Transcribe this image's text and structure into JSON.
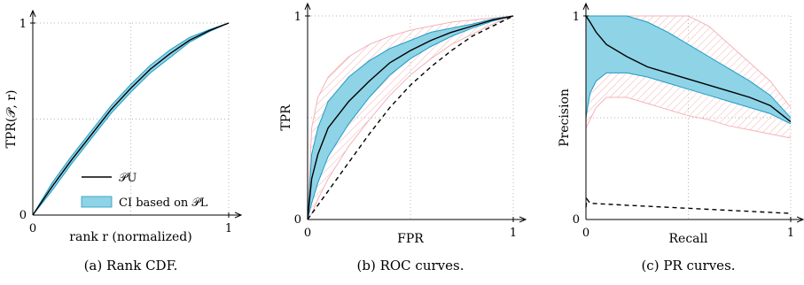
{
  "colors": {
    "ci_fill": "#8fd3e6",
    "ci_edge": "#1f9cc4",
    "median": "#000000",
    "bound": "#f3b3b8",
    "grid": "#9a9a9a"
  },
  "chart_data": [
    {
      "type": "area",
      "caption": "(a) Rank CDF.",
      "xlabel": "rank  r (normalized)",
      "ylabel": "TPR(𝒫, r)",
      "xlim": [
        0,
        1
      ],
      "ylim": [
        0,
        1
      ],
      "x_ticks": [
        "0",
        "1"
      ],
      "y_ticks": [
        "0",
        "1"
      ],
      "grid": true,
      "legend": {
        "placement": "bottom-right",
        "entries": [
          {
            "label": "𝒫U",
            "kind": "line"
          },
          {
            "label": "CI based on 𝒫L",
            "kind": "band"
          }
        ]
      },
      "series": [
        {
          "name": "𝒫U",
          "role": "median",
          "x": [
            0,
            0.1,
            0.2,
            0.3,
            0.4,
            0.5,
            0.6,
            0.7,
            0.8,
            0.9,
            1.0
          ],
          "y": [
            0,
            0.15,
            0.29,
            0.42,
            0.55,
            0.66,
            0.76,
            0.84,
            0.91,
            0.96,
            1.0
          ]
        },
        {
          "name": "CI based on 𝒫L",
          "role": "ci",
          "x": [
            0,
            0.1,
            0.2,
            0.3,
            0.4,
            0.5,
            0.6,
            0.7,
            0.8,
            0.9,
            1.0
          ],
          "lower": [
            0,
            0.13,
            0.27,
            0.4,
            0.53,
            0.64,
            0.74,
            0.82,
            0.9,
            0.955,
            1.0
          ],
          "upper": [
            0,
            0.17,
            0.31,
            0.44,
            0.57,
            0.68,
            0.78,
            0.86,
            0.925,
            0.965,
            1.0
          ]
        }
      ]
    },
    {
      "type": "line",
      "caption": "(b) ROC curves.",
      "xlabel": "FPR",
      "ylabel": "TPR",
      "xlim": [
        0,
        1
      ],
      "ylim": [
        0,
        1
      ],
      "x_ticks": [
        "0",
        "1"
      ],
      "y_ticks": [
        "0",
        "1"
      ],
      "grid": true,
      "series": [
        {
          "role": "median",
          "x": [
            0,
            0.02,
            0.05,
            0.1,
            0.2,
            0.3,
            0.4,
            0.5,
            0.6,
            0.7,
            0.8,
            0.9,
            1.0
          ],
          "y": [
            0,
            0.2,
            0.32,
            0.45,
            0.58,
            0.68,
            0.77,
            0.83,
            0.88,
            0.92,
            0.95,
            0.98,
            1.0
          ]
        },
        {
          "role": "ci",
          "x": [
            0,
            0.02,
            0.05,
            0.1,
            0.2,
            0.3,
            0.4,
            0.5,
            0.6,
            0.7,
            0.8,
            0.9,
            1.0
          ],
          "lower": [
            0,
            0.08,
            0.18,
            0.31,
            0.47,
            0.6,
            0.71,
            0.79,
            0.85,
            0.9,
            0.94,
            0.975,
            1.0
          ],
          "upper": [
            0,
            0.32,
            0.45,
            0.58,
            0.7,
            0.78,
            0.84,
            0.88,
            0.92,
            0.94,
            0.96,
            0.985,
            1.0
          ]
        },
        {
          "role": "bound_upper",
          "x": [
            0,
            0.02,
            0.05,
            0.1,
            0.2,
            0.3,
            0.4,
            0.5,
            0.6,
            0.7,
            0.8,
            0.9,
            1.0
          ],
          "y": [
            0,
            0.45,
            0.6,
            0.7,
            0.8,
            0.86,
            0.9,
            0.93,
            0.95,
            0.97,
            0.98,
            0.99,
            1.0
          ]
        },
        {
          "role": "bound_lower",
          "x": [
            0,
            0.02,
            0.05,
            0.1,
            0.2,
            0.3,
            0.4,
            0.5,
            0.6,
            0.7,
            0.8,
            0.9,
            1.0
          ],
          "y": [
            0,
            0.03,
            0.1,
            0.2,
            0.36,
            0.49,
            0.61,
            0.71,
            0.79,
            0.86,
            0.91,
            0.96,
            1.0
          ]
        },
        {
          "role": "dashed",
          "x": [
            0,
            0.1,
            0.2,
            0.3,
            0.4,
            0.5,
            0.6,
            0.7,
            0.8,
            0.9,
            1.0
          ],
          "y": [
            0,
            0.14,
            0.28,
            0.42,
            0.55,
            0.66,
            0.75,
            0.83,
            0.9,
            0.95,
            1.0
          ]
        }
      ]
    },
    {
      "type": "line",
      "caption": "(c) PR curves.",
      "xlabel": "Recall",
      "ylabel": "Precision",
      "xlim": [
        0,
        1
      ],
      "ylim": [
        0,
        1
      ],
      "x_ticks": [
        "0",
        "1"
      ],
      "y_ticks": [
        "0",
        "1"
      ],
      "grid": true,
      "series": [
        {
          "role": "median",
          "x": [
            0,
            0.02,
            0.05,
            0.1,
            0.2,
            0.3,
            0.4,
            0.5,
            0.6,
            0.7,
            0.8,
            0.9,
            1.0
          ],
          "y": [
            1.0,
            0.97,
            0.92,
            0.86,
            0.8,
            0.75,
            0.72,
            0.69,
            0.66,
            0.63,
            0.6,
            0.56,
            0.48
          ]
        },
        {
          "role": "ci",
          "x": [
            0,
            0.02,
            0.05,
            0.1,
            0.2,
            0.3,
            0.4,
            0.5,
            0.6,
            0.7,
            0.8,
            0.9,
            1.0
          ],
          "lower": [
            0.5,
            0.62,
            0.68,
            0.72,
            0.72,
            0.7,
            0.67,
            0.64,
            0.61,
            0.58,
            0.55,
            0.52,
            0.47
          ],
          "upper": [
            1.0,
            1.0,
            1.0,
            1.0,
            1.0,
            0.97,
            0.92,
            0.86,
            0.8,
            0.74,
            0.68,
            0.61,
            0.5
          ]
        },
        {
          "role": "bound_upper",
          "x": [
            0,
            0.1,
            0.2,
            0.3,
            0.4,
            0.5,
            0.6,
            0.7,
            0.8,
            0.9,
            1.0
          ],
          "y": [
            1.0,
            1.0,
            1.0,
            1.0,
            1.0,
            1.0,
            0.95,
            0.86,
            0.77,
            0.68,
            0.55
          ]
        },
        {
          "role": "bound_lower",
          "x": [
            0,
            0.05,
            0.1,
            0.2,
            0.3,
            0.4,
            0.5,
            0.6,
            0.7,
            0.8,
            0.9,
            1.0
          ],
          "y": [
            0.45,
            0.55,
            0.6,
            0.6,
            0.57,
            0.54,
            0.51,
            0.49,
            0.46,
            0.44,
            0.42,
            0.4
          ]
        },
        {
          "role": "dashed",
          "x": [
            0,
            0.005,
            0.02,
            0.2,
            0.4,
            0.6,
            0.8,
            1.0
          ],
          "y": [
            0.06,
            0.1,
            0.08,
            0.07,
            0.06,
            0.05,
            0.04,
            0.03
          ]
        }
      ]
    }
  ]
}
